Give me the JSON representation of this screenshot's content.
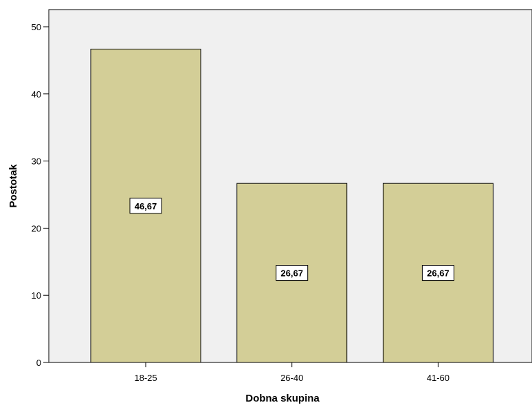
{
  "chart_data": {
    "type": "bar",
    "categories": [
      "18-25",
      "26-40",
      "41-60"
    ],
    "values": [
      46.67,
      26.67,
      26.67
    ],
    "data_labels": [
      "46,67",
      "26,67",
      "26,67"
    ],
    "xlabel": "Dobna skupina",
    "ylabel": "Postotak",
    "ylim": [
      0,
      50
    ],
    "yticks": [
      0,
      10,
      20,
      30,
      40,
      50
    ],
    "grid": false,
    "legend": "none",
    "colors": {
      "plot_background": "#f0f0f0",
      "bar_fill": "#d3ce97",
      "bar_stroke": "#000000",
      "axis": "#000000",
      "label_box_fill": "#ffffff"
    }
  }
}
